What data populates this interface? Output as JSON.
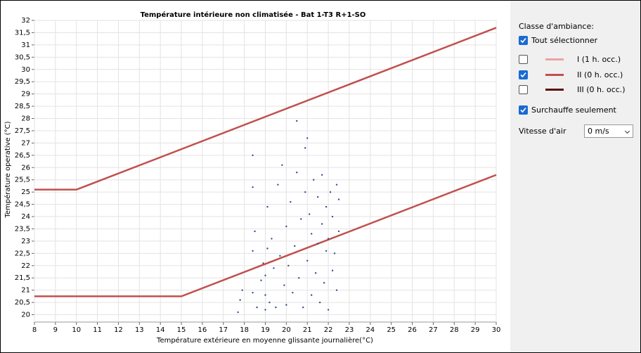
{
  "chart_data": {
    "type": "scatter",
    "title": "Température intérieure non climatisée  - Bat 1-T3 R+1-SO",
    "x_label": "Température extérieure en moyenne glissante journalière(°C)",
    "y_label": "Température operative (°C)",
    "xlim": [
      8,
      30
    ],
    "ylim": [
      19.7,
      32
    ],
    "xticks": [
      8,
      9,
      10,
      11,
      12,
      13,
      14,
      15,
      16,
      17,
      18,
      19,
      20,
      21,
      22,
      23,
      24,
      25,
      26,
      27,
      28,
      29,
      30
    ],
    "yticks": [
      20,
      {
        "value": 20.5,
        "label": "20,5"
      },
      21,
      {
        "value": 21.5,
        "label": "21,5"
      },
      22,
      {
        "value": 22.5,
        "label": "22,5"
      },
      23,
      {
        "value": 23.5,
        "label": "23,5"
      },
      24,
      {
        "value": 24.5,
        "label": "24,5"
      },
      25,
      {
        "value": 25.5,
        "label": "25,5"
      },
      26,
      {
        "value": 26.5,
        "label": "26,5"
      },
      27,
      {
        "value": 27.5,
        "label": "27,5"
      },
      28,
      {
        "value": 28.5,
        "label": "28,5"
      },
      29,
      {
        "value": 29.5,
        "label": "29,5"
      },
      30,
      {
        "value": 30.5,
        "label": "30,5"
      },
      31,
      {
        "value": 31.5,
        "label": "31,5"
      },
      32
    ],
    "grid": true,
    "series": [
      {
        "type": "line",
        "color": "#c0504d",
        "x": [
          8,
          10,
          30
        ],
        "values": [
          25.1,
          25.1,
          31.7
        ]
      },
      {
        "type": "line",
        "color": "#c0504d",
        "x": [
          8,
          15,
          30
        ],
        "values": [
          20.75,
          20.75,
          25.7
        ]
      },
      {
        "type": "scatter",
        "color": "#2f4f8f",
        "x": [
          17.7,
          17.8,
          17.9,
          18.4,
          18.4,
          18.4,
          18.4,
          18.5,
          18.6,
          18.8,
          18.9,
          19.0,
          19.0,
          19.0,
          19.1,
          19.1,
          19.2,
          19.3,
          19.4,
          19.5,
          19.6,
          19.7,
          19.8,
          19.9,
          20.0,
          20.0,
          20.1,
          20.2,
          20.3,
          20.4,
          20.5,
          20.5,
          20.6,
          20.7,
          20.8,
          20.9,
          20.9,
          21.0,
          21.0,
          21.1,
          21.2,
          21.2,
          21.3,
          21.4,
          21.5,
          21.5,
          21.6,
          21.7,
          21.7,
          21.8,
          21.9,
          21.9,
          22.0,
          22.0,
          22.1,
          22.2,
          22.2,
          22.3,
          22.4,
          22.4,
          22.5,
          22.5
        ],
        "values": [
          20.1,
          20.6,
          21.0,
          20.9,
          22.6,
          25.2,
          26.5,
          23.4,
          20.3,
          21.4,
          22.1,
          20.2,
          20.8,
          21.6,
          22.7,
          24.4,
          20.5,
          23.1,
          21.9,
          20.3,
          25.3,
          22.4,
          26.1,
          21.2,
          20.4,
          23.6,
          22.0,
          24.6,
          20.9,
          22.8,
          25.8,
          27.9,
          21.5,
          23.9,
          20.3,
          25.0,
          26.8,
          22.2,
          27.2,
          24.1,
          20.8,
          23.3,
          25.5,
          21.7,
          22.9,
          24.8,
          20.5,
          23.7,
          25.7,
          21.3,
          22.6,
          24.4,
          20.2,
          23.1,
          25.0,
          21.8,
          24.0,
          22.5,
          25.3,
          21.0,
          23.4,
          24.7
        ]
      }
    ]
  },
  "panel": {
    "title": "Classe d'ambiance:",
    "select_all": {
      "label": "Tout sélectionner",
      "checked": true
    },
    "classes": [
      {
        "label": "I (1 h. occ.)",
        "checked": false
      },
      {
        "label": "II (0 h. occ.)",
        "checked": true
      },
      {
        "label": "III (0 h. occ.)",
        "checked": false
      }
    ],
    "overheat": {
      "label": "Surchauffe seulement",
      "checked": true
    },
    "air_speed": {
      "label": "Vitesse d'air",
      "value": "0 m/s"
    }
  }
}
